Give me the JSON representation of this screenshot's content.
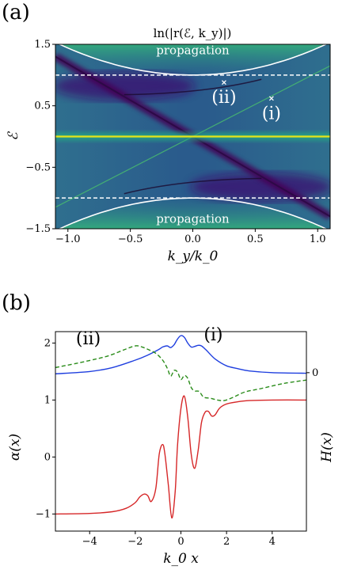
{
  "chart_data": [
    {
      "panel_label": "(a)",
      "type": "heatmap",
      "title": "ln(|r(ℰ, k_y)|)",
      "xlabel": "k_y/k_0",
      "ylabel": "ℰ",
      "xlim": [
        -1.1,
        1.1
      ],
      "ylim": [
        -1.5,
        1.5
      ],
      "xticks": [
        -1.0,
        -0.5,
        0.0,
        0.5,
        1.0
      ],
      "xtick_labels": [
        "−1.0",
        "−0.5",
        "0.0",
        "0.5",
        "1.0"
      ],
      "yticks": [
        1.5,
        0.5,
        -0.5,
        -1.5
      ],
      "ytick_labels": [
        "1.5",
        "0.5",
        "−0.5",
        "−1.5"
      ],
      "dashed_lines_y": [
        1.0,
        -1.0
      ],
      "propagation_label": "propagation",
      "points": [
        {
          "label": "(ii)",
          "ky": 0.25,
          "E": 0.88
        },
        {
          "label": "(i)",
          "ky": 0.63,
          "E": 0.62
        }
      ],
      "colormap": "viridis"
    },
    {
      "panel_label": "(b)",
      "type": "line",
      "xlabel": "k_0 x",
      "ylabel_left": "α(x)",
      "ylabel_right": "H(x)",
      "xlim": [
        -5.5,
        5.5
      ],
      "ylim": [
        -1.3,
        2.2
      ],
      "xticks": [
        -4,
        -2,
        0,
        2,
        4
      ],
      "xtick_labels": [
        "−4",
        "−2",
        "0",
        "2",
        "4"
      ],
      "yticks": [
        2,
        1,
        0,
        -1
      ],
      "ytick_labels": [
        "2",
        "1",
        "0",
        "−1"
      ],
      "right_tick_label": "0",
      "right_tick_value": 1.48,
      "annotations": [
        {
          "text": "(ii)",
          "x": -4.6,
          "y": 1.98
        },
        {
          "text": "(i)",
          "x": 1.0,
          "y": 2.05
        }
      ],
      "series": [
        {
          "color": "#d62728",
          "style": "solid",
          "x": [
            -5.5,
            -4,
            -3,
            -2.4,
            -2,
            -1.8,
            -1.6,
            -1.45,
            -1.3,
            -1.1,
            -0.95,
            -0.8,
            -0.7,
            -0.55,
            -0.4,
            -0.25,
            -0.15,
            0.0,
            0.15,
            0.3,
            0.45,
            0.6,
            0.75,
            0.9,
            1.05,
            1.2,
            1.35,
            1.5,
            1.7,
            2.0,
            2.5,
            3.0,
            4.0,
            5.5
          ],
          "y": [
            -1.0,
            -0.99,
            -0.96,
            -0.9,
            -0.8,
            -0.7,
            -0.65,
            -0.68,
            -0.78,
            -0.55,
            0.05,
            0.22,
            0.05,
            -0.5,
            -1.07,
            -0.6,
            0.2,
            0.85,
            1.07,
            0.7,
            0.05,
            -0.2,
            0.1,
            0.6,
            0.78,
            0.8,
            0.72,
            0.74,
            0.86,
            0.93,
            0.97,
            0.99,
            1.0,
            1.0
          ]
        },
        {
          "color": "#1f3fdf",
          "style": "solid",
          "x": [
            -5.5,
            -4,
            -3,
            -2,
            -1.5,
            -1.0,
            -0.8,
            -0.6,
            -0.45,
            -0.3,
            -0.15,
            0.0,
            0.15,
            0.3,
            0.45,
            0.6,
            0.75,
            0.9,
            1.1,
            1.5,
            2.0,
            2.5,
            3.0,
            4.0,
            5.5
          ],
          "y": [
            1.46,
            1.5,
            1.57,
            1.7,
            1.78,
            1.88,
            1.93,
            1.95,
            1.92,
            1.97,
            2.07,
            2.13,
            2.1,
            2.0,
            1.93,
            1.94,
            1.96,
            1.95,
            1.88,
            1.72,
            1.6,
            1.55,
            1.51,
            1.48,
            1.47
          ]
        },
        {
          "color": "#2a8c1a",
          "style": "dashed",
          "x": [
            -5.5,
            -4.5,
            -3.5,
            -3.0,
            -2.5,
            -2.0,
            -1.7,
            -1.4,
            -1.1,
            -0.8,
            -0.6,
            -0.45,
            -0.3,
            -0.15,
            0.0,
            0.15,
            0.3,
            0.45,
            0.6,
            0.8,
            1.0,
            1.3,
            1.6,
            1.9,
            2.3,
            2.8,
            3.5,
            4.5,
            5.5
          ],
          "y": [
            1.57,
            1.65,
            1.74,
            1.8,
            1.88,
            1.95,
            1.93,
            1.88,
            1.82,
            1.7,
            1.56,
            1.42,
            1.52,
            1.49,
            1.36,
            1.43,
            1.38,
            1.22,
            1.16,
            1.15,
            1.05,
            1.03,
            1.0,
            0.99,
            1.05,
            1.14,
            1.2,
            1.29,
            1.35
          ]
        }
      ]
    }
  ]
}
